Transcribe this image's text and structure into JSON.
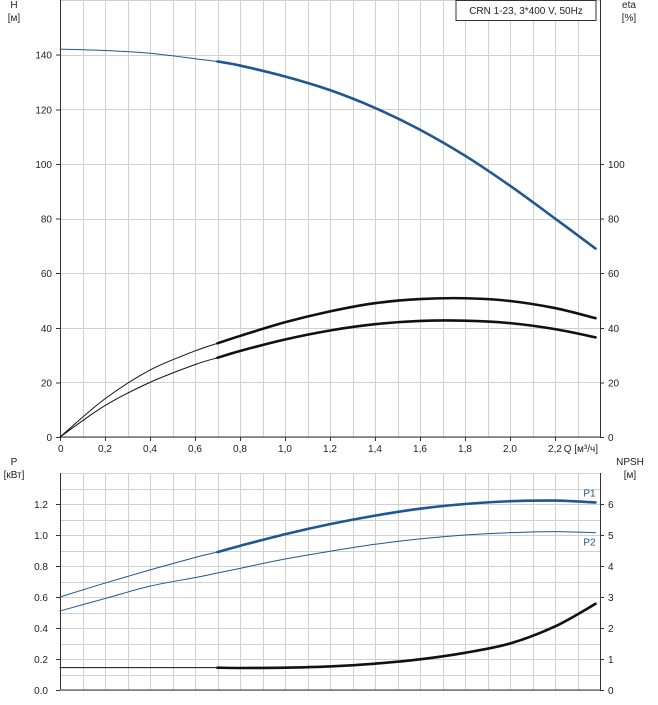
{
  "title_box": "CRN 1-23, 3*400 V, 50Hz",
  "colors": {
    "blue": "#1f5791",
    "black": "#111111",
    "grid": "#d0d0d0"
  },
  "chart_data": [
    {
      "type": "line",
      "panel": "top",
      "xlabel": "Q [м³/ч]",
      "ylabel_left": [
        "H",
        "[м]"
      ],
      "ylabel_right": [
        "eta",
        "[%]"
      ],
      "xlim": [
        0,
        2.4
      ],
      "ylim": [
        0,
        160
      ],
      "x_ticks": [
        0,
        0.2,
        0.4,
        0.6,
        0.8,
        1.0,
        1.2,
        1.4,
        1.6,
        1.8,
        2.0,
        2.2
      ],
      "x_tick_labels": [
        "0",
        "0,2",
        "0,4",
        "0,6",
        "0,8",
        "1,0",
        "1,2",
        "1,4",
        "1,6",
        "1,8",
        "2,0",
        "2,2"
      ],
      "y_ticks_left": [
        0,
        20,
        40,
        60,
        80,
        100,
        120,
        140
      ],
      "y_ticks_right": [
        0,
        20,
        40,
        60,
        80,
        100
      ],
      "grid": true,
      "series": [
        {
          "id": "H",
          "axis": "left",
          "color": "#1f5791",
          "x": [
            0,
            0.2,
            0.4,
            0.6,
            0.7,
            0.8,
            1.0,
            1.2,
            1.4,
            1.6,
            1.8,
            2.0,
            2.2,
            2.38
          ],
          "y": [
            142,
            141.5,
            140.5,
            138.5,
            137.5,
            136,
            132,
            127,
            120.5,
            112.5,
            103,
            92,
            80,
            69
          ],
          "bold_from": 0.7
        },
        {
          "id": "eta-upper",
          "axis": "right",
          "color": "#111111",
          "x": [
            0,
            0.2,
            0.4,
            0.6,
            0.7,
            0.8,
            1.0,
            1.2,
            1.4,
            1.6,
            1.8,
            2.0,
            2.2,
            2.38
          ],
          "y": [
            0,
            14,
            24.5,
            31.5,
            34.3,
            37,
            42,
            46,
            49,
            50.5,
            50.8,
            49.8,
            47.2,
            43.5
          ],
          "bold_from": 0.7
        },
        {
          "id": "eta-lower",
          "axis": "right",
          "color": "#111111",
          "x": [
            0,
            0.2,
            0.4,
            0.6,
            0.7,
            0.8,
            1.0,
            1.2,
            1.4,
            1.6,
            1.8,
            2.0,
            2.2,
            2.38
          ],
          "y": [
            0,
            11.5,
            20,
            26.5,
            29,
            31.5,
            35.7,
            39,
            41.3,
            42.5,
            42.6,
            41.7,
            39.5,
            36.5
          ],
          "bold_from": 0.7
        }
      ]
    },
    {
      "type": "line",
      "panel": "bottom",
      "ylabel_left": [
        "P",
        "[кВт]"
      ],
      "ylabel_right": [
        "NPSH",
        "[м]"
      ],
      "xlim": [
        0,
        2.4
      ],
      "ylim": [
        0,
        1.4
      ],
      "y_ticks_left": [
        0.0,
        0.2,
        0.4,
        0.6,
        0.8,
        1.0,
        1.2
      ],
      "y_tick_labels_left": [
        "0.0",
        "0.2",
        "0.4",
        "0.6",
        "0.8",
        "1.0",
        "1.2"
      ],
      "y_ticks_right": [
        0,
        1,
        2,
        3,
        4,
        5,
        6
      ],
      "right_ylim": [
        0,
        7
      ],
      "grid": true,
      "series": [
        {
          "id": "P1",
          "name": "P1",
          "axis": "left",
          "color": "#1f5791",
          "x": [
            0,
            0.2,
            0.4,
            0.6,
            0.7,
            0.8,
            1.0,
            1.2,
            1.4,
            1.6,
            1.8,
            2.0,
            2.2,
            2.38
          ],
          "y": [
            0.6,
            0.69,
            0.775,
            0.855,
            0.89,
            0.93,
            1.005,
            1.07,
            1.125,
            1.17,
            1.2,
            1.218,
            1.222,
            1.21
          ],
          "bold_from": 0.7
        },
        {
          "id": "P2",
          "name": "P2",
          "axis": "left",
          "color": "#1f5791",
          "x": [
            0,
            0.2,
            0.4,
            0.6,
            0.7,
            0.8,
            1.0,
            1.2,
            1.4,
            1.6,
            1.8,
            2.0,
            2.2,
            2.38
          ],
          "y": [
            0.51,
            0.59,
            0.67,
            0.725,
            0.755,
            0.785,
            0.845,
            0.895,
            0.94,
            0.975,
            1.0,
            1.015,
            1.022,
            1.015
          ],
          "bold_from": 3
        },
        {
          "id": "NPSH",
          "axis": "right",
          "color": "#111111",
          "x": [
            0,
            0.2,
            0.4,
            0.6,
            0.7,
            0.8,
            1.0,
            1.2,
            1.4,
            1.6,
            1.8,
            2.0,
            2.2,
            2.38
          ],
          "y": [
            0.72,
            0.72,
            0.72,
            0.72,
            0.72,
            0.71,
            0.72,
            0.76,
            0.85,
            0.99,
            1.2,
            1.5,
            2.05,
            2.78
          ],
          "bold_from": 0.7
        }
      ]
    }
  ]
}
